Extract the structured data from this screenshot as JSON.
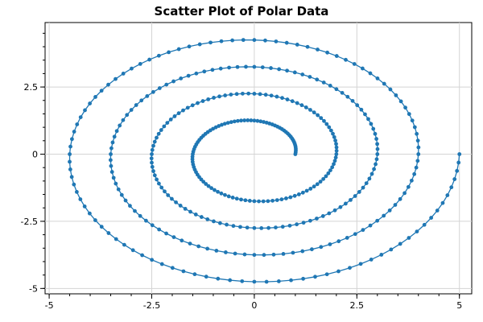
{
  "chart_data": {
    "type": "scatter",
    "title": "Scatter Plot of Polar Data",
    "xlabel": "",
    "ylabel": "",
    "xlim": [
      -5.1,
      5.3
    ],
    "ylim": [
      -5.2,
      4.9
    ],
    "x_ticks": [
      -5,
      -2.5,
      0,
      2.5,
      5
    ],
    "x_tick_labels": [
      "-5",
      "-2.5",
      "0",
      "2.5",
      "5"
    ],
    "y_ticks": [
      -5,
      -2.5,
      0,
      2.5
    ],
    "y_tick_labels": [
      "-5",
      "-2.5",
      "0",
      "2.5"
    ],
    "grid": true,
    "legend": "none",
    "series": [
      {
        "color": "#1f77b4",
        "connected": true,
        "marker": "circle",
        "polar_spiral": {
          "r_start": 1,
          "r_end": 5,
          "theta_start_deg": 0,
          "theta_end_deg": 1440,
          "point_count": 401,
          "relation": "r = 1 + theta / (2*pi)",
          "x": "r*cos(theta)",
          "y": "r*sin(theta)"
        }
      }
    ]
  }
}
